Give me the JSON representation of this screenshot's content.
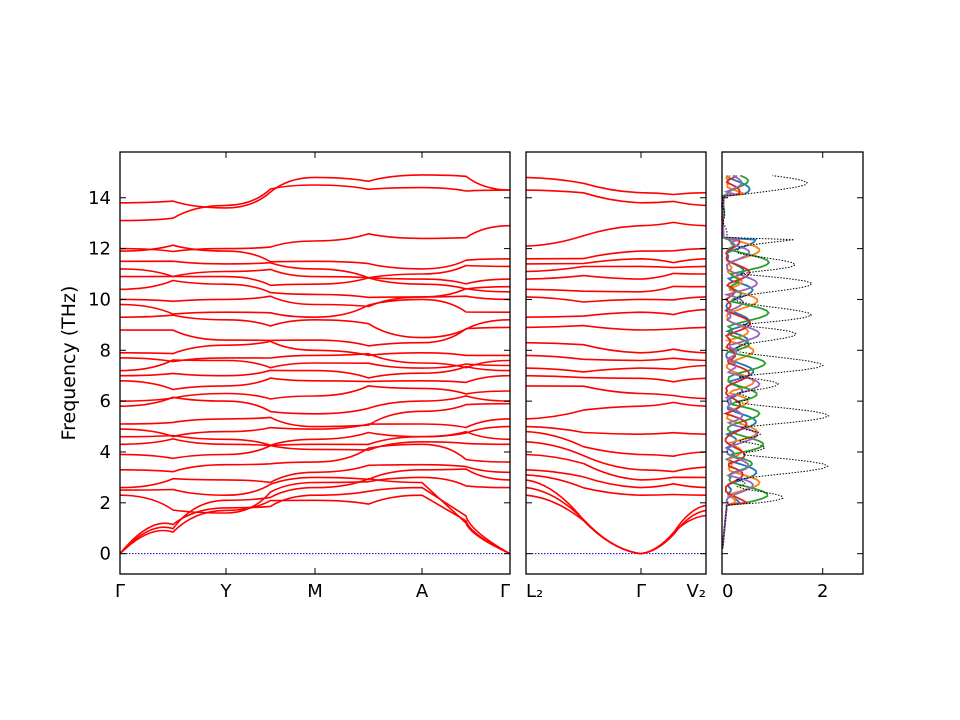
{
  "chart_data": [
    {
      "type": "line",
      "panel": "band-structure-1",
      "ylabel": "Frequency (THz)",
      "ylim": [
        -0.8,
        15.8
      ],
      "yticks": [
        0,
        2,
        4,
        6,
        8,
        10,
        12,
        14
      ],
      "xticks": [
        "Γ",
        "Y",
        "M",
        "A",
        "Γ"
      ],
      "line_color": "#ff0000",
      "zero_line_color": "#0000cc",
      "bands_at_ticks": [
        [
          0,
          1.7,
          2.1,
          2.3,
          0
        ],
        [
          0,
          1.8,
          2.3,
          2.6,
          0
        ],
        [
          0,
          2.1,
          2.6,
          2.8,
          0
        ],
        [
          2.3,
          1.6,
          2.8,
          3.0,
          2.6
        ],
        [
          2.5,
          2.3,
          3.0,
          3.3,
          2.9
        ],
        [
          2.6,
          2.9,
          3.2,
          3.5,
          3.2
        ],
        [
          3.3,
          3.5,
          3.6,
          4.3,
          3.6
        ],
        [
          3.9,
          3.9,
          4.1,
          4.4,
          4.3
        ],
        [
          4.3,
          4.3,
          4.3,
          4.6,
          4.5
        ],
        [
          4.6,
          4.5,
          4.5,
          4.6,
          5.0
        ],
        [
          4.9,
          4.8,
          4.9,
          5.1,
          5.3
        ],
        [
          5.1,
          5.3,
          5.0,
          5.6,
          5.9
        ],
        [
          5.8,
          6.0,
          5.5,
          6.0,
          6.0
        ],
        [
          6.0,
          6.3,
          6.2,
          6.5,
          6.4
        ],
        [
          6.8,
          6.6,
          6.8,
          6.8,
          7.0
        ],
        [
          7.0,
          7.0,
          7.2,
          7.1,
          7.2
        ],
        [
          7.2,
          7.6,
          7.5,
          7.3,
          7.4
        ],
        [
          7.7,
          7.7,
          7.8,
          7.5,
          7.6
        ],
        [
          7.9,
          8.2,
          8.0,
          7.9,
          7.8
        ],
        [
          8.8,
          8.4,
          8.4,
          8.3,
          8.9
        ],
        [
          9.3,
          9.2,
          9.2,
          8.5,
          9.2
        ],
        [
          9.8,
          9.5,
          9.3,
          10.0,
          9.5
        ],
        [
          10.0,
          10.0,
          9.8,
          10.1,
          10.0
        ],
        [
          10.4,
          10.6,
          10.2,
          10.1,
          10.3
        ],
        [
          10.9,
          10.9,
          10.6,
          10.6,
          10.5
        ],
        [
          11.2,
          11.1,
          10.9,
          10.8,
          10.8
        ],
        [
          11.5,
          11.4,
          11.2,
          11.0,
          11.3
        ],
        [
          11.9,
          11.9,
          11.5,
          11.2,
          11.6
        ],
        [
          12.0,
          12.0,
          12.3,
          12.4,
          12.9
        ],
        [
          13.1,
          13.7,
          14.5,
          14.4,
          14.3
        ],
        [
          13.8,
          13.6,
          14.8,
          14.9,
          14.3
        ]
      ]
    },
    {
      "type": "line",
      "panel": "band-structure-2",
      "ylim": [
        -0.8,
        15.8
      ],
      "xticks": [
        "L₂",
        "Γ",
        "V₂"
      ],
      "line_color": "#ff0000",
      "bands_at_ticks": [
        [
          2.3,
          0,
          1.5
        ],
        [
          2.6,
          0,
          1.7
        ],
        [
          2.9,
          0,
          1.9
        ],
        [
          3.1,
          2.3,
          2.3
        ],
        [
          3.3,
          2.6,
          2.6
        ],
        [
          3.9,
          2.9,
          3.0
        ],
        [
          4.4,
          3.3,
          3.4
        ],
        [
          4.8,
          3.9,
          4.0
        ],
        [
          5.0,
          4.7,
          4.7
        ],
        [
          5.3,
          5.8,
          5.8
        ],
        [
          6.6,
          6.3,
          6.1
        ],
        [
          7.0,
          6.9,
          6.9
        ],
        [
          7.3,
          7.3,
          7.4
        ],
        [
          7.8,
          7.6,
          7.6
        ],
        [
          8.3,
          7.9,
          7.9
        ],
        [
          8.9,
          8.8,
          8.9
        ],
        [
          9.3,
          9.5,
          9.6
        ],
        [
          10.1,
          10.0,
          10.1
        ],
        [
          10.4,
          10.3,
          10.5
        ],
        [
          10.8,
          10.8,
          11.0
        ],
        [
          11.1,
          11.3,
          11.3
        ],
        [
          11.4,
          11.6,
          11.6
        ],
        [
          11.6,
          11.9,
          12.0
        ],
        [
          12.1,
          12.9,
          12.9
        ],
        [
          14.3,
          13.8,
          13.7
        ],
        [
          14.8,
          14.2,
          14.2
        ]
      ]
    },
    {
      "type": "line",
      "panel": "density-of-states",
      "xticks": [
        0,
        2
      ],
      "xlim": [
        0,
        2.8
      ],
      "ylim": [
        -0.8,
        15.8
      ],
      "series": [
        {
          "color": "#1f77b4",
          "style": "solid"
        },
        {
          "color": "#ff7f0e",
          "style": "solid"
        },
        {
          "color": "#2ca02c",
          "style": "solid"
        },
        {
          "color": "#d62728",
          "style": "solid"
        },
        {
          "color": "#9467bd",
          "style": "solid"
        },
        {
          "color": "#000000",
          "style": "dotted",
          "total": true
        }
      ]
    }
  ]
}
